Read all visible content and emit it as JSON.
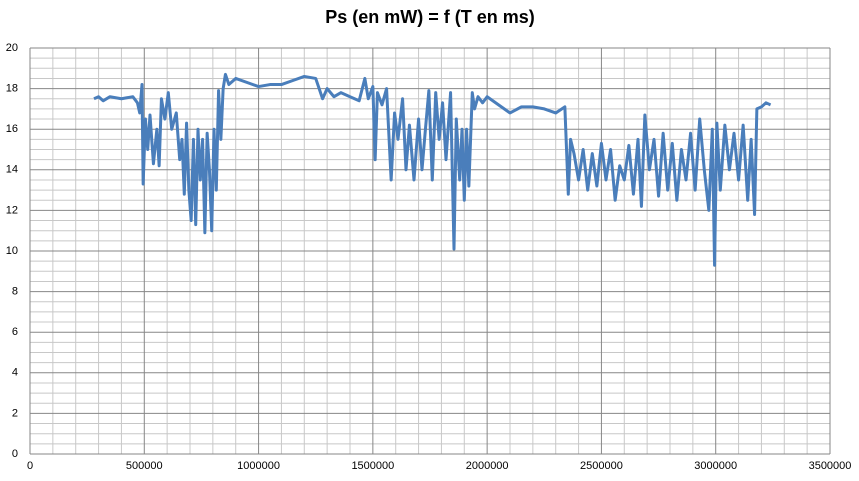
{
  "chart_data": {
    "type": "line",
    "title": "Ps (en mW) = f (T en ms)",
    "x": [
      280000,
      300000,
      320000,
      350000,
      400000,
      450000,
      470000,
      480000,
      490000,
      495000,
      505000,
      515000,
      525000,
      540000,
      555000,
      565000,
      575000,
      590000,
      605000,
      620000,
      640000,
      655000,
      665000,
      675000,
      685000,
      695000,
      705000,
      715000,
      725000,
      735000,
      745000,
      755000,
      765000,
      775000,
      785000,
      795000,
      805000,
      815000,
      825000,
      835000,
      845000,
      855000,
      870000,
      900000,
      950000,
      1000000,
      1050000,
      1100000,
      1150000,
      1200000,
      1250000,
      1280000,
      1300000,
      1330000,
      1360000,
      1400000,
      1440000,
      1465000,
      1480000,
      1500000,
      1510000,
      1520000,
      1540000,
      1560000,
      1580000,
      1595000,
      1610000,
      1630000,
      1645000,
      1660000,
      1680000,
      1700000,
      1715000,
      1730000,
      1745000,
      1760000,
      1775000,
      1790000,
      1805000,
      1820000,
      1840000,
      1855000,
      1865000,
      1880000,
      1890000,
      1900000,
      1910000,
      1920000,
      1935000,
      1945000,
      1960000,
      1980000,
      2000000,
      2050000,
      2100000,
      2150000,
      2200000,
      2250000,
      2300000,
      2340000,
      2355000,
      2365000,
      2380000,
      2400000,
      2420000,
      2440000,
      2460000,
      2480000,
      2500000,
      2520000,
      2540000,
      2560000,
      2580000,
      2600000,
      2620000,
      2640000,
      2660000,
      2675000,
      2690000,
      2710000,
      2730000,
      2750000,
      2770000,
      2790000,
      2810000,
      2830000,
      2850000,
      2870000,
      2890000,
      2910000,
      2930000,
      2950000,
      2970000,
      2985000,
      2995000,
      3005000,
      3020000,
      3040000,
      3060000,
      3080000,
      3100000,
      3120000,
      3140000,
      3155000,
      3170000,
      3180000,
      3200000,
      3220000,
      3240000
    ],
    "series": [
      {
        "name": "Ps",
        "color": "#4a7ebb",
        "values": [
          17.5,
          17.6,
          17.4,
          17.6,
          17.5,
          17.6,
          17.3,
          16.8,
          18.2,
          13.3,
          16.5,
          15,
          16.7,
          14.3,
          16,
          14.2,
          17.5,
          16.5,
          17.8,
          16,
          16.8,
          14.5,
          15.5,
          12.8,
          16.3,
          13,
          11.5,
          15.5,
          11.3,
          16,
          13.5,
          15.5,
          10.9,
          15.8,
          14,
          11,
          16,
          13,
          17.9,
          15.5,
          18,
          18.7,
          18.2,
          18.5,
          18.3,
          18.1,
          18.2,
          18.2,
          18.4,
          18.6,
          18.5,
          17.5,
          18,
          17.6,
          17.8,
          17.6,
          17.4,
          18.5,
          17.5,
          18.1,
          14.5,
          17.8,
          17.2,
          18,
          13.5,
          16.8,
          15.5,
          17.5,
          14,
          16.2,
          13.5,
          16.5,
          14,
          16,
          17.9,
          13.5,
          17.8,
          15.5,
          17.3,
          14.5,
          17.8,
          10.1,
          16.5,
          13.5,
          16,
          12.5,
          16,
          13.2,
          17.8,
          17,
          17.6,
          17.3,
          17.6,
          17.2,
          16.8,
          17.1,
          17.1,
          17,
          16.8,
          17.1,
          12.8,
          15.5,
          14.8,
          13.5,
          15,
          13,
          14.8,
          13.2,
          15.3,
          13.5,
          15,
          12.5,
          14.2,
          13.5,
          15.2,
          12.8,
          15.5,
          12.2,
          16.7,
          14,
          15.5,
          12.7,
          15.8,
          13,
          15.3,
          12.5,
          15,
          13.5,
          15.8,
          13,
          16.5,
          14,
          12,
          16,
          9.3,
          16.3,
          13,
          16.2,
          14,
          15.8,
          13.5,
          16.2,
          12.5,
          15.5,
          11.8,
          17,
          17.1,
          17.3,
          17.2
        ]
      }
    ],
    "xlim": [
      0,
      3500000
    ],
    "xticks": [
      0,
      500000,
      1000000,
      1500000,
      2000000,
      2500000,
      3000000,
      3500000
    ],
    "ylim": [
      0,
      20
    ],
    "yticks": [
      0,
      2,
      4,
      6,
      8,
      10,
      12,
      14,
      16,
      18,
      20
    ],
    "xminorticks": [
      100000,
      200000,
      300000,
      400000,
      600000,
      700000,
      800000,
      900000,
      1100000,
      1200000,
      1300000,
      1400000,
      1600000,
      1700000,
      1800000,
      1900000,
      2100000,
      2200000,
      2300000,
      2400000,
      2600000,
      2700000,
      2800000,
      2900000,
      3100000,
      3200000,
      3300000,
      3400000
    ],
    "yminorticks": [
      0.5,
      1,
      1.5,
      2.5,
      3,
      3.5,
      4.5,
      5,
      5.5,
      6.5,
      7,
      7.5,
      8.5,
      9,
      9.5,
      10.5,
      11,
      11.5,
      12.5,
      13,
      13.5,
      14.5,
      15,
      15.5,
      16.5,
      17,
      17.5,
      18.5,
      19,
      19.5
    ],
    "grid": true
  }
}
